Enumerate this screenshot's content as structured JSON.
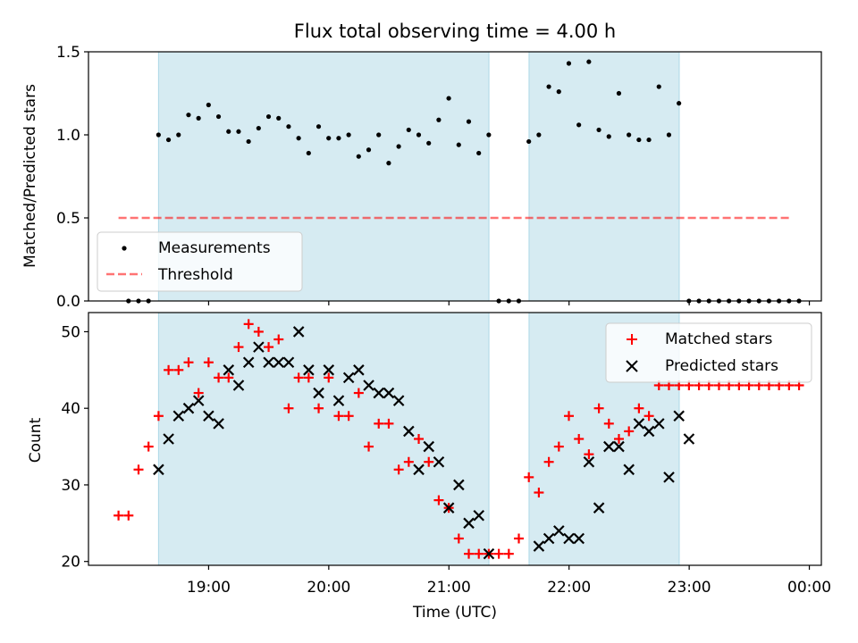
{
  "chart_data": {
    "type": "scatter",
    "title": "Flux total observing time = 4.00 h",
    "xlabel": "Time (UTC)",
    "xlim_hours": [
      18.0,
      24.1
    ],
    "xticks": [
      {
        "v": 19,
        "label": "19:00"
      },
      {
        "v": 20,
        "label": "20:00"
      },
      {
        "v": 21,
        "label": "21:00"
      },
      {
        "v": 22,
        "label": "22:00"
      },
      {
        "v": 23,
        "label": "23:00"
      },
      {
        "v": 24,
        "label": "00:00"
      }
    ],
    "shaded_intervals_hours": [
      [
        18.583,
        21.333
      ],
      [
        21.667,
        22.917
      ]
    ],
    "colors": {
      "shade": "#add8e6",
      "threshold": "#ff0000",
      "matched": "#ff0000",
      "predicted": "#000000",
      "measurement": "#000000"
    },
    "top": {
      "ylabel": "Matched/Predicted stars",
      "ylim": [
        0,
        1.5
      ],
      "yticks": [
        {
          "v": 0,
          "label": "0.0"
        },
        {
          "v": 0.5,
          "label": "0.5"
        },
        {
          "v": 1.0,
          "label": "1.0"
        },
        {
          "v": 1.5,
          "label": "1.5"
        }
      ],
      "threshold": {
        "value": 0.5,
        "x_from": 18.25,
        "x_to": 23.83
      },
      "legend": {
        "placement": "lower-left",
        "measurements": "Measurements",
        "threshold": "Threshold"
      },
      "measurements": {
        "x0": 18.333,
        "dx": 0.0833,
        "values": [
          0,
          0,
          0,
          1.0,
          0.97,
          1.0,
          1.12,
          1.1,
          1.18,
          1.11,
          1.02,
          1.02,
          0.96,
          1.04,
          1.11,
          1.1,
          1.05,
          0.98,
          0.89,
          1.05,
          0.98,
          0.98,
          1.0,
          0.87,
          0.91,
          1.0,
          0.83,
          0.93,
          1.03,
          1.0,
          0.95,
          1.09,
          1.22,
          0.94,
          1.08,
          0.89,
          1.0,
          0,
          0,
          0,
          0.96,
          1.0,
          1.29,
          1.26,
          1.43,
          1.06,
          1.44,
          1.03,
          0.99,
          1.25,
          1.0,
          0.97,
          0.97,
          1.29,
          1.0,
          1.19,
          0,
          0,
          0,
          0,
          0,
          0,
          0,
          0,
          0,
          0,
          0,
          0
        ]
      }
    },
    "bottom": {
      "ylabel": "Count",
      "ylim": [
        19.5,
        52.5
      ],
      "yticks": [
        {
          "v": 20,
          "label": "20"
        },
        {
          "v": 30,
          "label": "30"
        },
        {
          "v": 40,
          "label": "40"
        },
        {
          "v": 50,
          "label": "50"
        }
      ],
      "legend": {
        "placement": "upper-right",
        "matched": "Matched stars",
        "predicted": "Predicted stars"
      },
      "matched": {
        "x0": 18.25,
        "dx": 0.0833,
        "values": [
          26,
          26,
          32,
          35,
          39,
          45,
          45,
          46,
          42,
          46,
          44,
          44,
          48,
          51,
          50,
          48,
          49,
          40,
          44,
          44,
          40,
          44,
          39,
          39,
          42,
          35,
          38,
          38,
          32,
          33,
          36,
          33,
          28,
          27,
          23,
          21,
          21,
          21,
          21,
          21,
          23,
          31,
          29,
          33,
          35,
          39,
          36,
          34,
          40,
          38,
          36,
          37,
          40,
          39,
          43,
          43,
          43,
          43,
          43,
          43,
          43,
          43,
          43,
          43,
          43,
          43,
          43,
          43,
          43
        ]
      },
      "predicted": {
        "x0": 18.5833,
        "dx": 0.0833,
        "values": [
          32,
          36,
          39,
          40,
          41,
          39,
          38,
          45,
          43,
          46,
          48,
          46,
          46,
          46,
          50,
          45,
          42,
          45,
          41,
          44,
          45,
          43,
          42,
          42,
          41,
          37,
          32,
          35,
          33,
          27,
          30,
          25,
          26,
          21,
          null,
          null,
          null,
          null,
          22,
          23,
          24,
          23,
          23,
          33,
          27,
          35,
          35,
          32,
          38,
          37,
          38,
          31,
          39,
          36
        ]
      }
    }
  }
}
